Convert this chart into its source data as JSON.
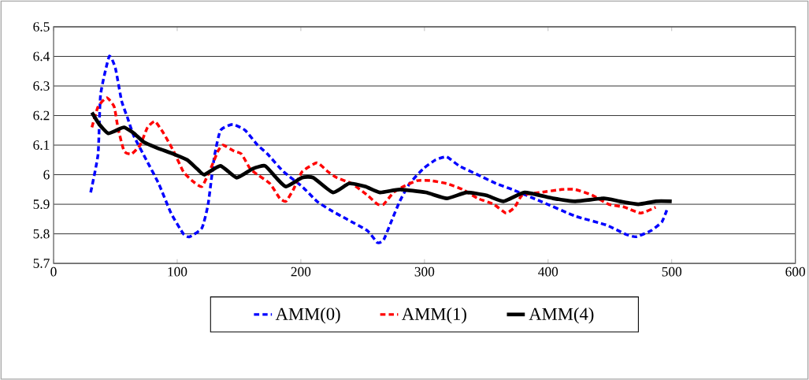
{
  "chart_data": {
    "type": "line",
    "xlim": [
      0,
      600
    ],
    "ylim": [
      5.7,
      6.5
    ],
    "xticks": [
      0,
      100,
      200,
      300,
      400,
      500,
      600
    ],
    "yticks": [
      5.7,
      5.8,
      5.9,
      6,
      6.1,
      6.2,
      6.3,
      6.4,
      6.5
    ],
    "grid": "y",
    "legend": "bottom",
    "marker": "none",
    "series": [
      {
        "name": "AMM(0)",
        "color": "#0000ff",
        "line_style": "dashed",
        "x": [
          30,
          36,
          38,
          45,
          50,
          55,
          60,
          65,
          75,
          85,
          95,
          105,
          110,
          120,
          125,
          130,
          135,
          145,
          155,
          165,
          173,
          186,
          201,
          213,
          224,
          237,
          254,
          262,
          267,
          273,
          280,
          288,
          299,
          309,
          318,
          328,
          343,
          358,
          371,
          394,
          422,
          447,
          462,
          471,
          483,
          492,
          496
        ],
        "values": [
          5.94,
          6.07,
          6.27,
          6.4,
          6.36,
          6.25,
          6.19,
          6.13,
          6.05,
          5.97,
          5.87,
          5.8,
          5.79,
          5.82,
          5.9,
          6.06,
          6.15,
          6.17,
          6.15,
          6.1,
          6.07,
          6.01,
          5.96,
          5.91,
          5.88,
          5.85,
          5.81,
          5.77,
          5.78,
          5.84,
          5.91,
          5.97,
          6.02,
          6.05,
          6.06,
          6.03,
          6.0,
          5.97,
          5.95,
          5.91,
          5.86,
          5.83,
          5.8,
          5.79,
          5.81,
          5.84,
          5.88
        ]
      },
      {
        "name": "AMM(1)",
        "color": "#ff0000",
        "line_style": "dashed",
        "x": [
          31,
          36,
          43,
          49,
          52,
          57,
          63,
          70,
          76,
          82,
          89,
          97,
          105,
          112,
          120,
          127,
          133,
          137,
          146,
          152,
          159,
          165,
          175,
          183,
          188,
          194,
          201,
          213,
          222,
          229,
          241,
          254,
          262,
          267,
          275,
          283,
          294,
          305,
          318,
          331,
          343,
          356,
          366,
          373,
          379,
          394,
          411,
          422,
          436,
          449,
          462,
          475,
          487
        ],
        "values": [
          6.16,
          6.23,
          6.26,
          6.23,
          6.16,
          6.08,
          6.07,
          6.1,
          6.16,
          6.18,
          6.14,
          6.08,
          6.01,
          5.98,
          5.96,
          6.02,
          6.08,
          6.1,
          6.08,
          6.07,
          6.02,
          6.0,
          5.97,
          5.92,
          5.91,
          5.95,
          6.01,
          6.04,
          6.01,
          5.99,
          5.97,
          5.93,
          5.9,
          5.9,
          5.94,
          5.96,
          5.98,
          5.98,
          5.97,
          5.95,
          5.92,
          5.9,
          5.87,
          5.89,
          5.93,
          5.94,
          5.95,
          5.95,
          5.93,
          5.9,
          5.89,
          5.87,
          5.89
        ]
      },
      {
        "name": "AMM(4)",
        "color": "#000000",
        "line_style": "solid",
        "x": [
          31,
          37,
          44,
          51,
          57,
          65,
          73,
          84,
          97,
          108,
          116,
          122,
          135,
          148,
          161,
          171,
          180,
          188,
          201,
          210,
          226,
          239,
          252,
          264,
          280,
          301,
          318,
          334,
          350,
          364,
          381,
          404,
          422,
          445,
          458,
          473,
          487,
          500
        ],
        "values": [
          6.21,
          6.17,
          6.14,
          6.15,
          6.16,
          6.14,
          6.11,
          6.09,
          6.07,
          6.05,
          6.02,
          6.0,
          6.03,
          5.99,
          6.02,
          6.03,
          5.99,
          5.96,
          5.99,
          5.99,
          5.94,
          5.97,
          5.96,
          5.94,
          5.95,
          5.94,
          5.92,
          5.94,
          5.93,
          5.91,
          5.94,
          5.92,
          5.91,
          5.92,
          5.91,
          5.9,
          5.91,
          5.91
        ]
      }
    ]
  }
}
